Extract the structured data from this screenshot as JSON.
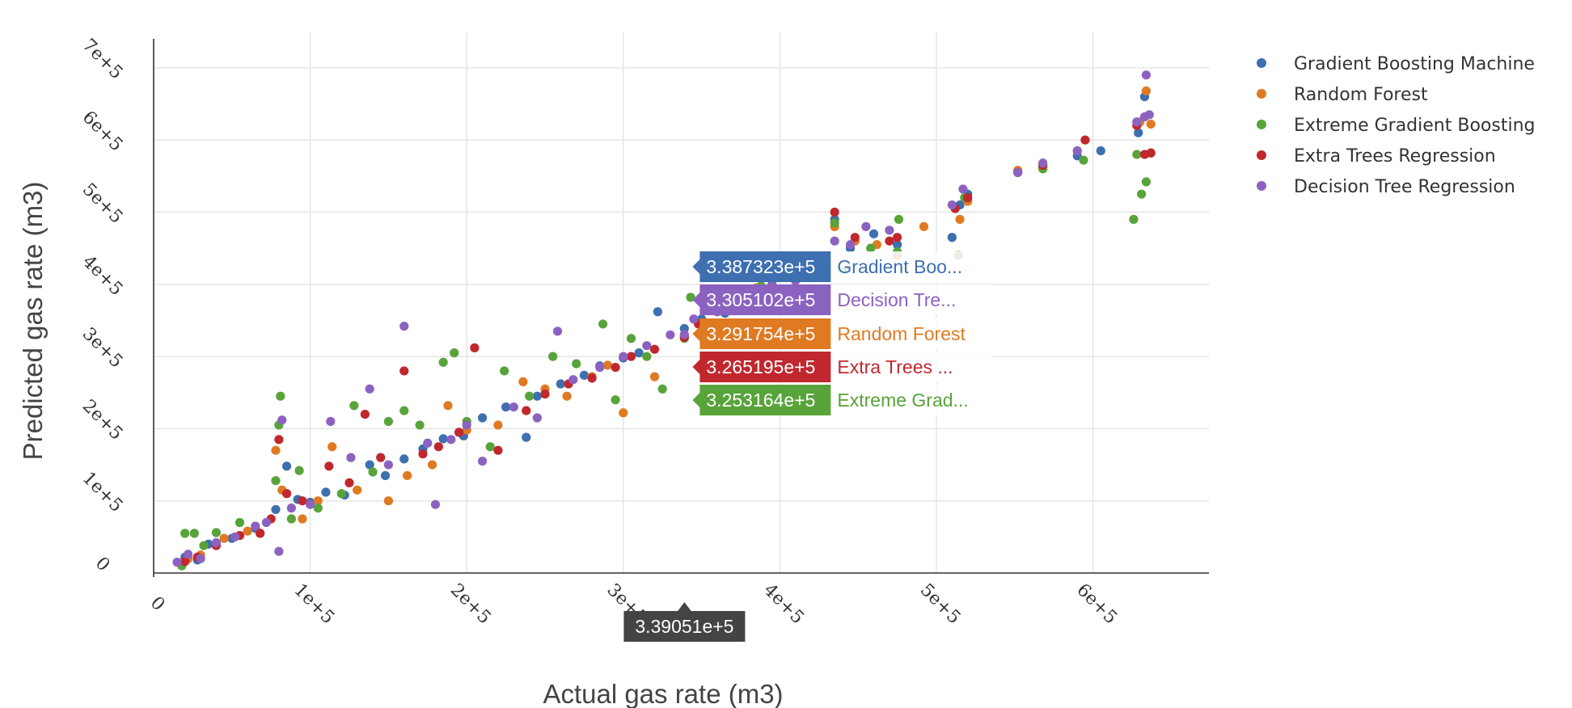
{
  "chart_data": {
    "type": "scatter",
    "xlabel": "Actual gas rate (m3)",
    "ylabel": "Predicted gas rate (m3)",
    "xlim": [
      0,
      675000
    ],
    "ylim": [
      -5000,
      735000
    ],
    "x_ticks": [
      {
        "value": 0,
        "label": "0"
      },
      {
        "value": 100000,
        "label": "1e+5"
      },
      {
        "value": 200000,
        "label": "2e+5"
      },
      {
        "value": 300000,
        "label": "3e+5"
      },
      {
        "value": 400000,
        "label": "4e+5"
      },
      {
        "value": 500000,
        "label": "5e+5"
      },
      {
        "value": 600000,
        "label": "6e+5"
      }
    ],
    "y_ticks": [
      {
        "value": 0,
        "label": "0"
      },
      {
        "value": 100000,
        "label": "1e+5"
      },
      {
        "value": 200000,
        "label": "2e+5"
      },
      {
        "value": 300000,
        "label": "3e+5"
      },
      {
        "value": 400000,
        "label": "4e+5"
      },
      {
        "value": 500000,
        "label": "5e+5"
      },
      {
        "value": 600000,
        "label": "6e+5"
      },
      {
        "value": 700000,
        "label": "7e+5"
      }
    ],
    "grid": true,
    "legend_position": "top-right",
    "series": [
      {
        "name": "Gradient Boosting Machine",
        "color": "#3e6fb0",
        "points": [
          [
            20000,
            22000
          ],
          [
            28000,
            18000
          ],
          [
            35000,
            40000
          ],
          [
            50000,
            48000
          ],
          [
            65000,
            62000
          ],
          [
            78000,
            88000
          ],
          [
            85000,
            148000
          ],
          [
            92000,
            102000
          ],
          [
            100000,
            98000
          ],
          [
            110000,
            112000
          ],
          [
            122000,
            108000
          ],
          [
            138000,
            150000
          ],
          [
            148000,
            135000
          ],
          [
            160000,
            158000
          ],
          [
            172000,
            172000
          ],
          [
            185000,
            186000
          ],
          [
            198000,
            190000
          ],
          [
            210000,
            215000
          ],
          [
            225000,
            230000
          ],
          [
            238000,
            188000
          ],
          [
            245000,
            245000
          ],
          [
            260000,
            262000
          ],
          [
            275000,
            274000
          ],
          [
            285000,
            287000
          ],
          [
            300000,
            298000
          ],
          [
            310000,
            305000
          ],
          [
            322000,
            362000
          ],
          [
            339000,
            338732
          ],
          [
            350000,
            352000
          ],
          [
            365000,
            360000
          ],
          [
            380000,
            390000
          ],
          [
            395000,
            400000
          ],
          [
            410000,
            420000
          ],
          [
            435000,
            490000
          ],
          [
            445000,
            450000
          ],
          [
            460000,
            470000
          ],
          [
            475000,
            455000
          ],
          [
            510000,
            465000
          ],
          [
            515000,
            510000
          ],
          [
            520000,
            525000
          ],
          [
            552000,
            555000
          ],
          [
            568000,
            562000
          ],
          [
            590000,
            578000
          ],
          [
            605000,
            585000
          ],
          [
            629000,
            610000
          ],
          [
            633000,
            660000
          ]
        ]
      },
      {
        "name": "Random Forest",
        "color": "#e07a22",
        "points": [
          [
            22000,
            20000
          ],
          [
            30000,
            25000
          ],
          [
            45000,
            48000
          ],
          [
            60000,
            58000
          ],
          [
            78000,
            170000
          ],
          [
            82000,
            115000
          ],
          [
            95000,
            75000
          ],
          [
            105000,
            100000
          ],
          [
            114000,
            175000
          ],
          [
            130000,
            115000
          ],
          [
            150000,
            100000
          ],
          [
            162000,
            135000
          ],
          [
            178000,
            150000
          ],
          [
            188000,
            232000
          ],
          [
            200000,
            198000
          ],
          [
            220000,
            205000
          ],
          [
            236000,
            265000
          ],
          [
            250000,
            255000
          ],
          [
            264000,
            245000
          ],
          [
            280000,
            272000
          ],
          [
            290000,
            288000
          ],
          [
            300000,
            222000
          ],
          [
            320000,
            272000
          ],
          [
            339000,
            329175
          ],
          [
            345000,
            352000
          ],
          [
            360000,
            375000
          ],
          [
            385000,
            395000
          ],
          [
            405000,
            410000
          ],
          [
            435000,
            480000
          ],
          [
            448000,
            460000
          ],
          [
            462000,
            455000
          ],
          [
            475000,
            440000
          ],
          [
            492000,
            480000
          ],
          [
            515000,
            490000
          ],
          [
            520000,
            515000
          ],
          [
            552000,
            558000
          ],
          [
            568000,
            565000
          ],
          [
            590000,
            585000
          ],
          [
            630000,
            625000
          ],
          [
            634000,
            668000
          ],
          [
            637000,
            622000
          ]
        ]
      },
      {
        "name": "Extreme Gradient Boosting",
        "color": "#58a33a",
        "points": [
          [
            18000,
            10000
          ],
          [
            20000,
            55000
          ],
          [
            26000,
            55000
          ],
          [
            32000,
            38000
          ],
          [
            40000,
            56000
          ],
          [
            55000,
            70000
          ],
          [
            68000,
            55000
          ],
          [
            78000,
            128000
          ],
          [
            80000,
            205000
          ],
          [
            81000,
            245000
          ],
          [
            88000,
            75000
          ],
          [
            93000,
            142000
          ],
          [
            105000,
            90000
          ],
          [
            120000,
            110000
          ],
          [
            128000,
            232000
          ],
          [
            140000,
            140000
          ],
          [
            150000,
            210000
          ],
          [
            160000,
            225000
          ],
          [
            170000,
            205000
          ],
          [
            185000,
            292000
          ],
          [
            192000,
            305000
          ],
          [
            200000,
            210000
          ],
          [
            215000,
            175000
          ],
          [
            224000,
            280000
          ],
          [
            240000,
            245000
          ],
          [
            255000,
            300000
          ],
          [
            270000,
            290000
          ],
          [
            287000,
            345000
          ],
          [
            295000,
            240000
          ],
          [
            305000,
            325000
          ],
          [
            315000,
            300000
          ],
          [
            325000,
            255000
          ],
          [
            339000,
            325316
          ],
          [
            343000,
            382000
          ],
          [
            350000,
            345000
          ],
          [
            370000,
            370000
          ],
          [
            388000,
            398000
          ],
          [
            410000,
            410000
          ],
          [
            435000,
            485000
          ],
          [
            442000,
            420000
          ],
          [
            458000,
            450000
          ],
          [
            475000,
            445000
          ],
          [
            476000,
            490000
          ],
          [
            514000,
            440000
          ],
          [
            518000,
            520000
          ],
          [
            568000,
            560000
          ],
          [
            594000,
            572000
          ],
          [
            626000,
            490000
          ],
          [
            628000,
            580000
          ],
          [
            631000,
            525000
          ],
          [
            634000,
            542000
          ],
          [
            637000,
            582000
          ]
        ]
      },
      {
        "name": "Extra Trees Regression",
        "color": "#c0282e",
        "points": [
          [
            20000,
            16000
          ],
          [
            28000,
            22000
          ],
          [
            40000,
            38000
          ],
          [
            55000,
            52000
          ],
          [
            68000,
            55000
          ],
          [
            75000,
            75000
          ],
          [
            80000,
            185000
          ],
          [
            85000,
            110000
          ],
          [
            95000,
            100000
          ],
          [
            112000,
            148000
          ],
          [
            125000,
            125000
          ],
          [
            135000,
            220000
          ],
          [
            145000,
            160000
          ],
          [
            160000,
            280000
          ],
          [
            172000,
            165000
          ],
          [
            182000,
            175000
          ],
          [
            195000,
            195000
          ],
          [
            205000,
            312000
          ],
          [
            220000,
            170000
          ],
          [
            238000,
            225000
          ],
          [
            250000,
            248000
          ],
          [
            265000,
            262000
          ],
          [
            280000,
            270000
          ],
          [
            295000,
            285000
          ],
          [
            305000,
            300000
          ],
          [
            320000,
            310000
          ],
          [
            339000,
            326520
          ],
          [
            348000,
            345000
          ],
          [
            365000,
            365000
          ],
          [
            385000,
            392000
          ],
          [
            410000,
            405000
          ],
          [
            435000,
            500000
          ],
          [
            448000,
            465000
          ],
          [
            470000,
            460000
          ],
          [
            475000,
            465000
          ],
          [
            512000,
            505000
          ],
          [
            520000,
            520000
          ],
          [
            552000,
            555000
          ],
          [
            568000,
            565000
          ],
          [
            595000,
            600000
          ],
          [
            628000,
            620000
          ],
          [
            633000,
            580000
          ],
          [
            637000,
            582000
          ]
        ]
      },
      {
        "name": "Decision Tree Regression",
        "color": "#8c62c0",
        "points": [
          [
            15000,
            15000
          ],
          [
            22000,
            26000
          ],
          [
            30000,
            20000
          ],
          [
            40000,
            42000
          ],
          [
            52000,
            50000
          ],
          [
            65000,
            65000
          ],
          [
            72000,
            70000
          ],
          [
            80000,
            30000
          ],
          [
            82000,
            212000
          ],
          [
            88000,
            90000
          ],
          [
            100000,
            95000
          ],
          [
            113000,
            210000
          ],
          [
            126000,
            160000
          ],
          [
            138000,
            255000
          ],
          [
            150000,
            150000
          ],
          [
            160000,
            342000
          ],
          [
            175000,
            180000
          ],
          [
            180000,
            95000
          ],
          [
            190000,
            185000
          ],
          [
            200000,
            205000
          ],
          [
            210000,
            155000
          ],
          [
            230000,
            230000
          ],
          [
            245000,
            215000
          ],
          [
            258000,
            335000
          ],
          [
            268000,
            268000
          ],
          [
            285000,
            285000
          ],
          [
            300000,
            300000
          ],
          [
            315000,
            315000
          ],
          [
            330000,
            330000
          ],
          [
            339000,
            330510
          ],
          [
            345000,
            352000
          ],
          [
            360000,
            362000
          ],
          [
            378000,
            380000
          ],
          [
            395000,
            398000
          ],
          [
            410000,
            405000
          ],
          [
            435000,
            460000
          ],
          [
            445000,
            455000
          ],
          [
            455000,
            480000
          ],
          [
            470000,
            475000
          ],
          [
            510000,
            510000
          ],
          [
            517000,
            532000
          ],
          [
            552000,
            555000
          ],
          [
            568000,
            568000
          ],
          [
            590000,
            585000
          ],
          [
            628000,
            625000
          ],
          [
            633000,
            632000
          ],
          [
            634000,
            690000
          ],
          [
            636000,
            635000
          ]
        ]
      }
    ],
    "hover": {
      "x_value": "3.39051e+5",
      "entries": [
        {
          "value": "3.387323e+5",
          "name": "Gradient Boo...",
          "color": "#3e6fb0"
        },
        {
          "value": "3.305102e+5",
          "name": "Decision Tre...",
          "color": "#8c62c0"
        },
        {
          "value": "3.291754e+5",
          "name": "Random Forest",
          "color": "#e07a22"
        },
        {
          "value": "3.265195e+5",
          "name": "Extra Trees ...",
          "color": "#c0282e"
        },
        {
          "value": "3.253164e+5",
          "name": "Extreme Grad...",
          "color": "#58a33a"
        }
      ]
    }
  }
}
